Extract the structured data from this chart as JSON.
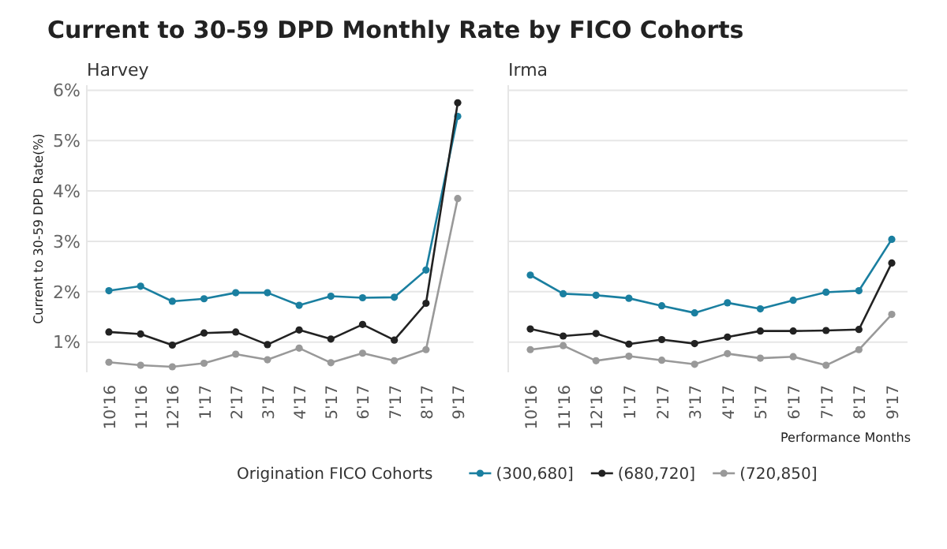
{
  "chart_data": [
    {
      "type": "line",
      "title": "Current to 30-59 DPD Monthly Rate by FICO Cohorts",
      "subtitle": "Harvey",
      "ylabel": "Current to 30-59 DPD Rate(%)",
      "legend_title": "Origination FICO Cohorts",
      "legend": "bottom",
      "grid": "y",
      "marker": "circle",
      "ylim": [
        0.4,
        6.1
      ],
      "yticks": [
        {
          "value": 1,
          "label": "1%"
        },
        {
          "value": 2,
          "label": "2%"
        },
        {
          "value": 3,
          "label": "3%"
        },
        {
          "value": 4,
          "label": "4%"
        },
        {
          "value": 5,
          "label": "5%"
        },
        {
          "value": 6,
          "label": "6%"
        }
      ],
      "categories": [
        "10'16",
        "11'16",
        "12'16",
        "1'17",
        "2'17",
        "3'17",
        "4'17",
        "5'17",
        "6'17",
        "7'17",
        "8'17",
        "9'17"
      ],
      "series": [
        {
          "name": "(300,680]",
          "color": "#1a7fa0",
          "values": [
            2.02,
            2.11,
            1.81,
            1.86,
            1.98,
            1.98,
            1.73,
            1.91,
            1.88,
            1.89,
            2.43,
            5.48
          ]
        },
        {
          "name": "(680,720]",
          "color": "#222222",
          "values": [
            1.2,
            1.16,
            0.94,
            1.18,
            1.2,
            0.95,
            1.24,
            1.06,
            1.35,
            1.04,
            1.77,
            5.75
          ]
        },
        {
          "name": "(720,850]",
          "color": "#999999",
          "values": [
            0.6,
            0.54,
            0.51,
            0.58,
            0.76,
            0.65,
            0.88,
            0.59,
            0.78,
            0.63,
            0.85,
            3.85
          ]
        }
      ]
    },
    {
      "type": "line",
      "subtitle": "Irma",
      "xlabel": "Performance Months",
      "grid": "y",
      "marker": "circle",
      "tick_labels": "x",
      "ylim": [
        0.4,
        6.1
      ],
      "yticks": [
        {
          "value": 1,
          "label": null
        },
        {
          "value": 2,
          "label": null
        },
        {
          "value": 3,
          "label": null
        },
        {
          "value": 4,
          "label": null
        },
        {
          "value": 5,
          "label": null
        },
        {
          "value": 6,
          "label": null
        }
      ],
      "categories": [
        "10'16",
        "11'16",
        "12'16",
        "1'17",
        "2'17",
        "3'17",
        "4'17",
        "5'17",
        "6'17",
        "7'17",
        "8'17",
        "9'17"
      ],
      "series": [
        {
          "color": "#1a7fa0",
          "values": [
            2.33,
            1.96,
            1.93,
            1.87,
            1.72,
            1.58,
            1.78,
            1.66,
            1.83,
            1.99,
            2.02,
            3.04
          ]
        },
        {
          "color": "#222222",
          "values": [
            1.26,
            1.12,
            1.17,
            0.96,
            1.05,
            0.97,
            1.1,
            1.22,
            1.22,
            1.23,
            1.25,
            2.57
          ]
        },
        {
          "color": "#999999",
          "values": [
            0.85,
            0.93,
            0.63,
            0.72,
            0.64,
            0.56,
            0.77,
            0.68,
            0.71,
            0.54,
            0.85,
            1.55
          ]
        }
      ]
    }
  ]
}
